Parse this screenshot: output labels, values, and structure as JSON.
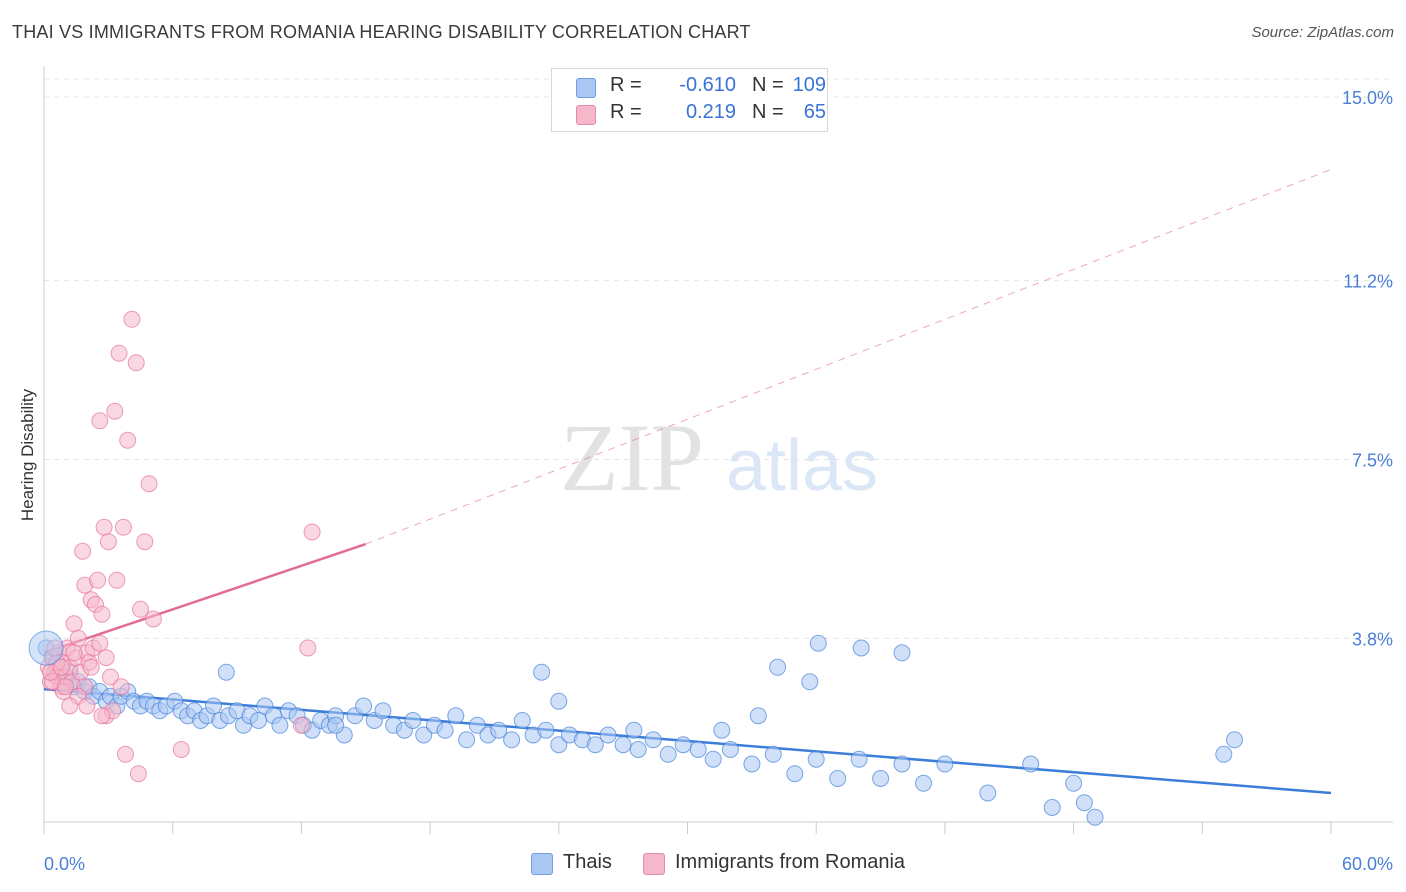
{
  "header": {
    "title": "THAI VS IMMIGRANTS FROM ROMANIA HEARING DISABILITY CORRELATION CHART",
    "source": "Source: ZipAtlas.com"
  },
  "watermark": {
    "zip": "ZIP",
    "atlas": "atlas"
  },
  "legend": {
    "rows": [
      {
        "r_label": "R =",
        "r_value": "-0.610",
        "n_label": "N =",
        "n_value": "109",
        "color": "#a9c7f2"
      },
      {
        "r_label": "R =",
        "r_value": "0.219",
        "n_label": "N =",
        "n_value": "65",
        "color": "#f5b8cb"
      }
    ]
  },
  "bottom_legend": [
    {
      "label": "Thais",
      "color": "#a9c7f2"
    },
    {
      "label": "Immigrants from Romania",
      "color": "#f5b8cb"
    }
  ],
  "chart_data": {
    "type": "scatter",
    "ylabel": "Hearing Disability",
    "xlim": [
      0,
      60
    ],
    "ylim": [
      0,
      15.0
    ],
    "x_tick_labels": [
      "0.0%",
      "60.0%"
    ],
    "y_ticks": [
      {
        "value": 15.0,
        "label": "15.0%"
      },
      {
        "value": 11.2,
        "label": "11.2%"
      },
      {
        "value": 7.5,
        "label": "7.5%"
      },
      {
        "value": 3.8,
        "label": "3.8%"
      }
    ],
    "grid": "horizontal dashed",
    "legend_position": "top-center",
    "series": [
      {
        "name": "Thais",
        "color": "#3b7dd8",
        "fill": "#a9c7f2",
        "trend": {
          "x0": 0,
          "y0": 2.75,
          "x1": 60,
          "y1": 0.6
        },
        "points": [
          [
            0.1,
            3.6
          ],
          [
            0.4,
            3.4
          ],
          [
            0.6,
            3.2
          ],
          [
            0.8,
            3.0
          ],
          [
            1.0,
            2.9
          ],
          [
            1.2,
            3.1
          ],
          [
            1.4,
            2.8
          ],
          [
            1.6,
            2.9
          ],
          [
            1.9,
            2.7
          ],
          [
            2.1,
            2.8
          ],
          [
            2.3,
            2.6
          ],
          [
            2.6,
            2.7
          ],
          [
            2.9,
            2.5
          ],
          [
            3.1,
            2.6
          ],
          [
            3.4,
            2.4
          ],
          [
            3.6,
            2.6
          ],
          [
            3.9,
            2.7
          ],
          [
            4.2,
            2.5
          ],
          [
            4.5,
            2.4
          ],
          [
            4.8,
            2.5
          ],
          [
            5.1,
            2.4
          ],
          [
            5.4,
            2.3
          ],
          [
            5.7,
            2.4
          ],
          [
            6.1,
            2.5
          ],
          [
            6.4,
            2.3
          ],
          [
            6.7,
            2.2
          ],
          [
            7.0,
            2.3
          ],
          [
            7.3,
            2.1
          ],
          [
            7.6,
            2.2
          ],
          [
            7.9,
            2.4
          ],
          [
            8.2,
            2.1
          ],
          [
            8.6,
            2.2
          ],
          [
            9.0,
            2.3
          ],
          [
            9.3,
            2.0
          ],
          [
            9.6,
            2.2
          ],
          [
            10.0,
            2.1
          ],
          [
            10.3,
            2.4
          ],
          [
            10.7,
            2.2
          ],
          [
            11.0,
            2.0
          ],
          [
            11.4,
            2.3
          ],
          [
            11.8,
            2.2
          ],
          [
            12.1,
            2.0
          ],
          [
            12.5,
            1.9
          ],
          [
            12.9,
            2.1
          ],
          [
            13.3,
            2.0
          ],
          [
            13.6,
            2.2
          ],
          [
            14.0,
            1.8
          ],
          [
            14.5,
            2.2
          ],
          [
            14.9,
            2.4
          ],
          [
            15.4,
            2.1
          ],
          [
            15.8,
            2.3
          ],
          [
            16.3,
            2.0
          ],
          [
            16.8,
            1.9
          ],
          [
            17.2,
            2.1
          ],
          [
            17.7,
            1.8
          ],
          [
            18.2,
            2.0
          ],
          [
            18.7,
            1.9
          ],
          [
            19.2,
            2.2
          ],
          [
            19.7,
            1.7
          ],
          [
            20.2,
            2.0
          ],
          [
            20.7,
            1.8
          ],
          [
            21.2,
            1.9
          ],
          [
            21.8,
            1.7
          ],
          [
            22.3,
            2.1
          ],
          [
            22.8,
            1.8
          ],
          [
            23.4,
            1.9
          ],
          [
            24.0,
            1.6
          ],
          [
            24.5,
            1.8
          ],
          [
            25.1,
            1.7
          ],
          [
            25.7,
            1.6
          ],
          [
            26.3,
            1.8
          ],
          [
            27.0,
            1.6
          ],
          [
            27.7,
            1.5
          ],
          [
            28.4,
            1.7
          ],
          [
            29.1,
            1.4
          ],
          [
            29.8,
            1.6
          ],
          [
            30.5,
            1.5
          ],
          [
            31.2,
            1.3
          ],
          [
            32.0,
            1.5
          ],
          [
            33.0,
            1.2
          ],
          [
            34.0,
            1.4
          ],
          [
            35.0,
            1.0
          ],
          [
            36.0,
            1.3
          ],
          [
            37.0,
            0.9
          ],
          [
            38.0,
            1.3
          ],
          [
            39.0,
            0.9
          ],
          [
            40.0,
            1.2
          ],
          [
            41.0,
            0.8
          ],
          [
            42.0,
            1.2
          ],
          [
            44.0,
            0.6
          ],
          [
            46.0,
            1.2
          ],
          [
            47.0,
            0.3
          ],
          [
            48.0,
            0.8
          ],
          [
            48.5,
            0.4
          ],
          [
            49.0,
            0.1
          ],
          [
            55.0,
            1.4
          ],
          [
            55.5,
            1.7
          ],
          [
            23.2,
            3.1
          ],
          [
            31.6,
            1.9
          ],
          [
            24.0,
            2.5
          ],
          [
            27.5,
            1.9
          ],
          [
            33.3,
            2.2
          ],
          [
            34.2,
            3.2
          ],
          [
            36.1,
            3.7
          ],
          [
            38.1,
            3.6
          ],
          [
            35.7,
            2.9
          ],
          [
            40.0,
            3.5
          ],
          [
            13.6,
            2.0
          ],
          [
            8.5,
            3.1
          ]
        ]
      },
      {
        "name": "Immigrants from Romania",
        "color": "#e36c97",
        "fill": "#f5b8cb",
        "trend": {
          "x0": 0,
          "y0": 3.5,
          "x1": 15,
          "y1": 5.75
        },
        "trend_extension": {
          "x0": 15,
          "y0": 5.75,
          "x1": 60,
          "y1": 13.5
        },
        "points": [
          [
            0.2,
            3.2
          ],
          [
            0.3,
            2.9
          ],
          [
            0.4,
            3.4
          ],
          [
            0.5,
            3.1
          ],
          [
            0.6,
            3.0
          ],
          [
            0.7,
            3.5
          ],
          [
            0.8,
            2.8
          ],
          [
            0.9,
            3.3
          ],
          [
            1.0,
            3.0
          ],
          [
            1.1,
            3.6
          ],
          [
            1.2,
            3.2
          ],
          [
            1.3,
            2.9
          ],
          [
            1.4,
            4.1
          ],
          [
            1.5,
            3.4
          ],
          [
            1.6,
            3.8
          ],
          [
            1.7,
            3.1
          ],
          [
            1.8,
            5.6
          ],
          [
            1.9,
            4.9
          ],
          [
            2.0,
            3.5
          ],
          [
            2.1,
            3.3
          ],
          [
            2.2,
            4.6
          ],
          [
            2.3,
            3.6
          ],
          [
            2.4,
            4.5
          ],
          [
            2.5,
            5.0
          ],
          [
            2.6,
            3.7
          ],
          [
            2.7,
            4.3
          ],
          [
            2.8,
            6.1
          ],
          [
            2.9,
            3.4
          ],
          [
            3.0,
            5.8
          ],
          [
            3.1,
            3.0
          ],
          [
            3.3,
            8.5
          ],
          [
            3.5,
            9.7
          ],
          [
            3.7,
            6.1
          ],
          [
            3.9,
            7.9
          ],
          [
            4.1,
            10.4
          ],
          [
            4.3,
            9.5
          ],
          [
            4.5,
            4.4
          ],
          [
            4.7,
            5.8
          ],
          [
            4.9,
            7.0
          ],
          [
            5.1,
            4.2
          ],
          [
            3.4,
            5.0
          ],
          [
            2.6,
            8.3
          ],
          [
            2.2,
            3.2
          ],
          [
            1.9,
            2.8
          ],
          [
            1.6,
            2.6
          ],
          [
            1.2,
            2.4
          ],
          [
            0.9,
            2.7
          ],
          [
            0.6,
            3.3
          ],
          [
            0.4,
            2.9
          ],
          [
            0.3,
            3.1
          ],
          [
            2.9,
            2.2
          ],
          [
            3.8,
            1.4
          ],
          [
            4.4,
            1.0
          ],
          [
            6.4,
            1.5
          ],
          [
            12.3,
            3.6
          ],
          [
            12.5,
            6.0
          ],
          [
            3.2,
            2.3
          ],
          [
            3.6,
            2.8
          ],
          [
            2.0,
            2.4
          ],
          [
            1.4,
            3.5
          ],
          [
            1.0,
            2.8
          ],
          [
            0.8,
            3.2
          ],
          [
            0.5,
            3.6
          ],
          [
            12.0,
            2.0
          ],
          [
            2.7,
            2.2
          ]
        ]
      }
    ]
  }
}
